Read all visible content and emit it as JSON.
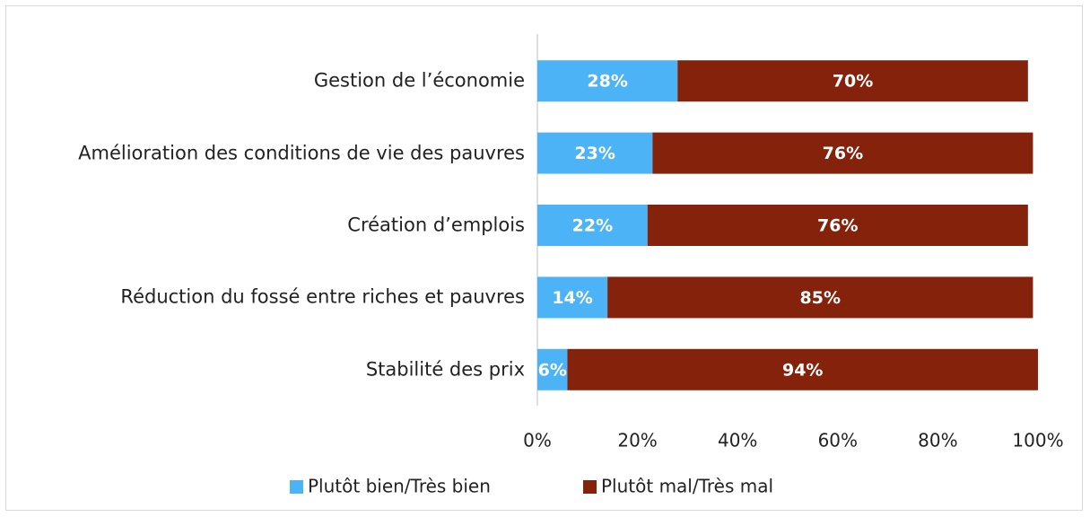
{
  "chart_data": {
    "type": "stacked_barh",
    "categories": [
      "Gestion de l’économie",
      "Amélioration des conditions de vie des pauvres",
      "Création d’emplois",
      "Réduction du fossé entre riches et pauvres",
      "Stabilité des prix"
    ],
    "series": [
      {
        "name": "Plutôt bien/Très bien",
        "color": "#4db3f7",
        "values": [
          28,
          23,
          22,
          14,
          6
        ],
        "value_labels": [
          "28%",
          "23%",
          "22%",
          "14%",
          "6%"
        ]
      },
      {
        "name": "Plutôt mal/Très mal",
        "color": "#85220b",
        "values": [
          70,
          76,
          76,
          85,
          94
        ],
        "value_labels": [
          "70%",
          "76%",
          "76%",
          "85%",
          "94%"
        ]
      }
    ],
    "xlim": [
      0,
      100
    ],
    "xticks": [
      {
        "value": 0,
        "label": "0%"
      },
      {
        "value": 20,
        "label": "20%"
      },
      {
        "value": 40,
        "label": "40%"
      },
      {
        "value": 60,
        "label": "60%"
      },
      {
        "value": 80,
        "label": "80%"
      },
      {
        "value": 100,
        "label": "100%"
      }
    ],
    "legend": "bottom"
  }
}
